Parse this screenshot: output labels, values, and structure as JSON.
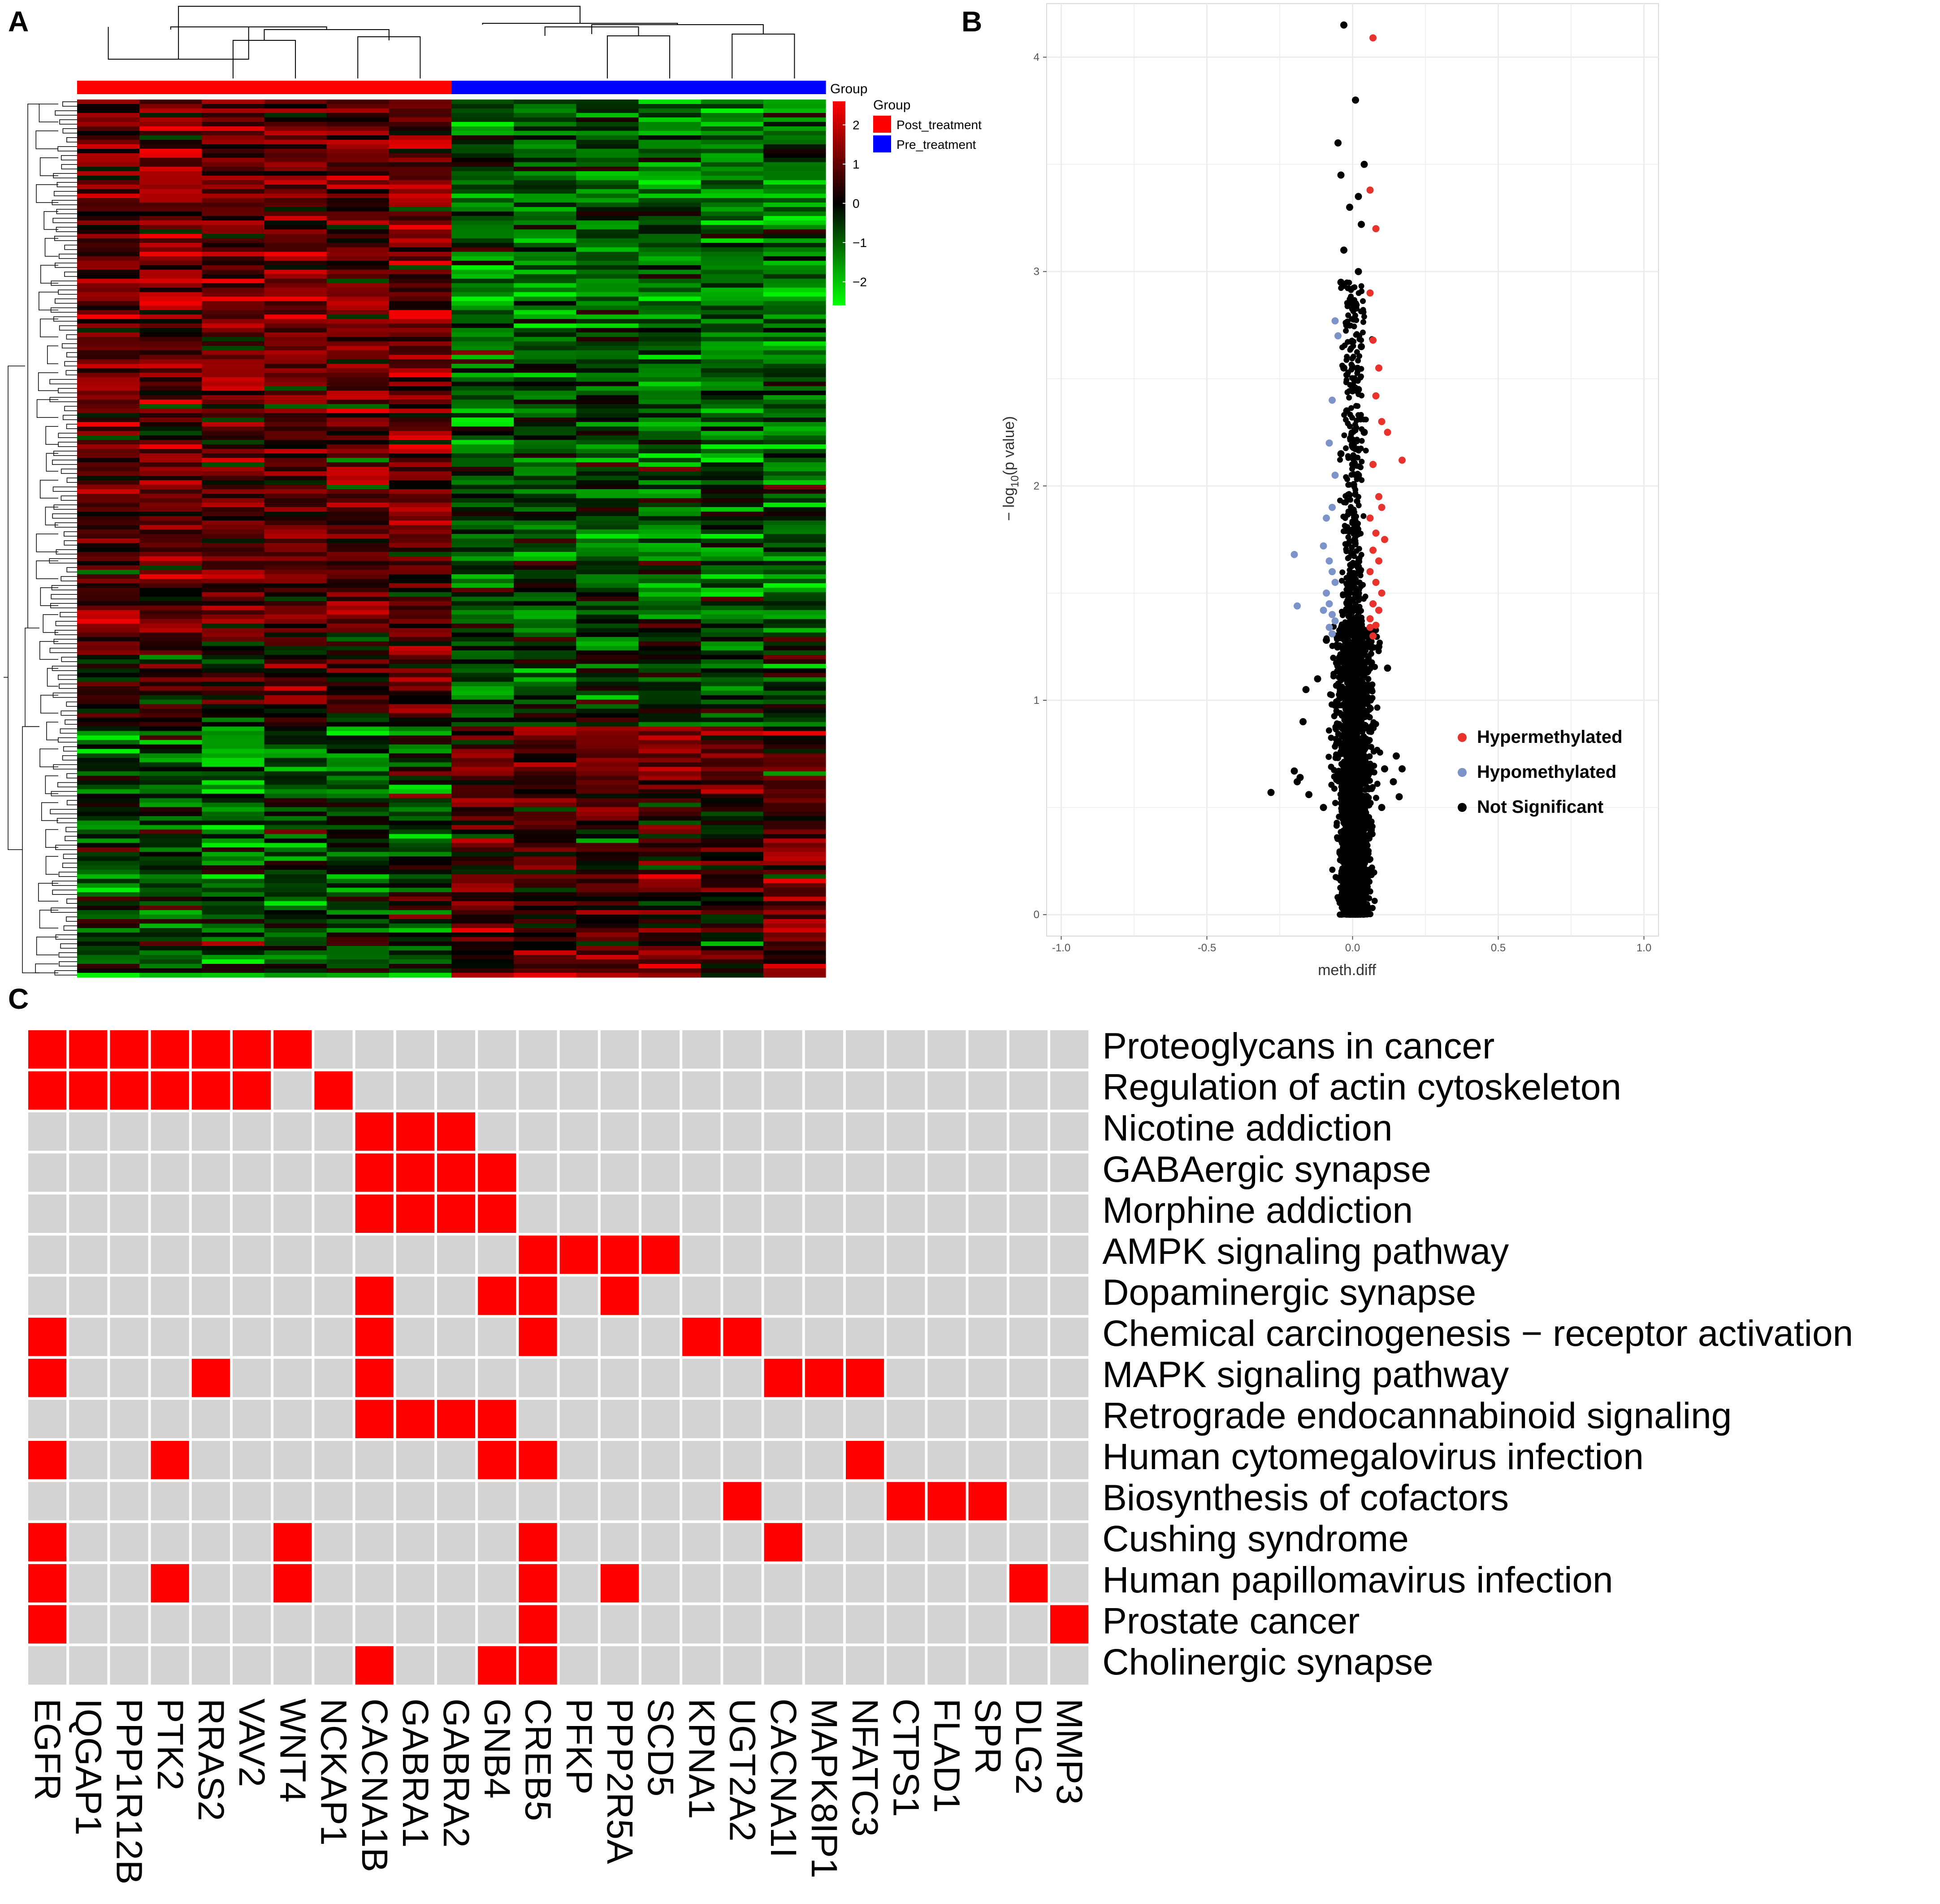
{
  "panels": {
    "a": {
      "letter": "A"
    },
    "b": {
      "letter": "B"
    },
    "c": {
      "letter": "C"
    }
  },
  "chart_data": [
    {
      "id": "heatmap",
      "type": "heatmap",
      "title": "",
      "description_rows": 196,
      "columns": 12,
      "column_groups": [
        "Post_treatment",
        "Post_treatment",
        "Post_treatment",
        "Post_treatment",
        "Post_treatment",
        "Post_treatment",
        "Pre_treatment",
        "Pre_treatment",
        "Pre_treatment",
        "Pre_treatment",
        "Pre_treatment",
        "Pre_treatment"
      ],
      "group_legend": {
        "title": "Group",
        "entries": [
          {
            "label": "Post_treatment",
            "color": "#ff0000"
          },
          {
            "label": "Pre_treatment",
            "color": "#0000ff"
          }
        ]
      },
      "color_scale": {
        "title": "Group",
        "low_color": "#00ff00",
        "mid_color": "#000000",
        "high_color": "#ff0000",
        "ticks": [
          "2",
          "1",
          "0",
          "−1",
          "−2"
        ],
        "tick_values": [
          2,
          1,
          0,
          -1,
          -2
        ],
        "range": [
          -2.6,
          2.6
        ]
      }
    },
    {
      "id": "volcano",
      "type": "scatter",
      "title": "",
      "xlabel": "meth.diff",
      "ylabel": "−log10(p value)",
      "ylabel_main": "− log",
      "ylabel_sub": "10",
      "ylabel_rest": "(p value)",
      "xlim": [
        -1.05,
        1.05
      ],
      "ylim": [
        -0.1,
        4.25
      ],
      "xticks": [
        -1.0,
        -0.5,
        0.0,
        0.5,
        1.0
      ],
      "xtick_labels": [
        "-1.0",
        "-0.5",
        "0.0",
        "0.5",
        "1.0"
      ],
      "yticks": [
        0,
        1,
        2,
        3,
        4
      ],
      "ytick_labels": [
        "0",
        "1",
        "2",
        "3",
        "4"
      ],
      "grid": true,
      "legend_placement": "bottom-right",
      "series": [
        {
          "name": "Hypermethylated",
          "color": "#e8322b",
          "points": [
            [
              0.07,
              4.09
            ],
            [
              0.06,
              3.38
            ],
            [
              0.08,
              3.2
            ],
            [
              0.06,
              2.9
            ],
            [
              0.07,
              2.68
            ],
            [
              0.09,
              2.55
            ],
            [
              0.08,
              2.42
            ],
            [
              0.1,
              2.3
            ],
            [
              0.12,
              2.25
            ],
            [
              0.17,
              2.12
            ],
            [
              0.07,
              2.1
            ],
            [
              0.09,
              1.95
            ],
            [
              0.1,
              1.9
            ],
            [
              0.06,
              1.85
            ],
            [
              0.08,
              1.78
            ],
            [
              0.11,
              1.75
            ],
            [
              0.07,
              1.7
            ],
            [
              0.09,
              1.65
            ],
            [
              0.06,
              1.6
            ],
            [
              0.08,
              1.55
            ],
            [
              0.1,
              1.5
            ],
            [
              0.07,
              1.45
            ],
            [
              0.09,
              1.42
            ],
            [
              0.06,
              1.38
            ],
            [
              0.08,
              1.35
            ],
            [
              0.07,
              1.3
            ],
            [
              0.06,
              1.34
            ]
          ]
        },
        {
          "name": "Hypomethylated",
          "color": "#7b93c8",
          "points": [
            [
              -0.06,
              2.77
            ],
            [
              -0.05,
              2.7
            ],
            [
              -0.07,
              2.4
            ],
            [
              -0.08,
              2.2
            ],
            [
              -0.06,
              2.05
            ],
            [
              -0.07,
              1.9
            ],
            [
              -0.09,
              1.85
            ],
            [
              -0.2,
              1.68
            ],
            [
              -0.1,
              1.72
            ],
            [
              -0.08,
              1.65
            ],
            [
              -0.07,
              1.6
            ],
            [
              -0.06,
              1.55
            ],
            [
              -0.09,
              1.5
            ],
            [
              -0.08,
              1.45
            ],
            [
              -0.19,
              1.44
            ],
            [
              -0.1,
              1.42
            ],
            [
              -0.07,
              1.4
            ],
            [
              -0.06,
              1.37
            ],
            [
              -0.08,
              1.34
            ],
            [
              -0.07,
              1.31
            ]
          ]
        },
        {
          "name": "Not Significant",
          "color": "#000000",
          "points": [
            [
              -0.03,
              4.15
            ],
            [
              0.01,
              3.8
            ],
            [
              -0.05,
              3.6
            ],
            [
              0.04,
              3.5
            ],
            [
              -0.04,
              3.45
            ],
            [
              0.02,
              3.35
            ],
            [
              -0.01,
              3.3
            ],
            [
              0.03,
              3.22
            ],
            [
              -0.03,
              3.1
            ],
            [
              0.02,
              3.0
            ],
            [
              -0.04,
              2.95
            ],
            [
              0.01,
              2.85
            ],
            [
              -0.02,
              2.75
            ],
            [
              0.03,
              2.65
            ],
            [
              -0.03,
              2.55
            ],
            [
              0.02,
              2.45
            ],
            [
              -0.02,
              2.35
            ],
            [
              0.04,
              2.25
            ],
            [
              -0.04,
              2.15
            ],
            [
              0.02,
              2.05
            ],
            [
              -0.28,
              0.57
            ],
            [
              -0.2,
              0.67
            ],
            [
              -0.18,
              0.64
            ],
            [
              -0.15,
              0.56
            ],
            [
              -0.16,
              1.05
            ],
            [
              -0.17,
              0.9
            ],
            [
              -0.19,
              0.62
            ],
            [
              0.17,
              0.68
            ],
            [
              0.14,
              0.62
            ],
            [
              0.16,
              0.55
            ],
            [
              0.15,
              0.74
            ],
            [
              0.11,
              0.68
            ],
            [
              -0.1,
              0.5
            ],
            [
              0.1,
              0.5
            ],
            [
              0.09,
              1.25
            ],
            [
              -0.09,
              1.28
            ],
            [
              0.12,
              1.15
            ],
            [
              -0.12,
              1.1
            ]
          ]
        }
      ]
    },
    {
      "id": "pathway-grid",
      "type": "heatmap",
      "title": "",
      "genes": [
        "EGFR",
        "IQGAP1",
        "PPP1R12B",
        "PTK2",
        "RRAS2",
        "VAV2",
        "WNT4",
        "NCKAP1",
        "CACNA1B",
        "GABRA1",
        "GABRA2",
        "GNB4",
        "CREB5",
        "PFKP",
        "PPP2R5A",
        "SCD5",
        "KPNA1",
        "UGT2A2",
        "CACNA1I",
        "MAPK8IP1",
        "NFATC3",
        "CTPS1",
        "FLAD1",
        "SPR",
        "DLG2",
        "MMP3"
      ],
      "pathways": [
        {
          "name": "Proteoglycans in cancer",
          "genes": [
            "EGFR",
            "IQGAP1",
            "PPP1R12B",
            "PTK2",
            "RRAS2",
            "VAV2",
            "WNT4"
          ]
        },
        {
          "name": "Regulation of actin cytoskeleton",
          "genes": [
            "EGFR",
            "IQGAP1",
            "PPP1R12B",
            "PTK2",
            "RRAS2",
            "VAV2",
            "NCKAP1"
          ]
        },
        {
          "name": "Nicotine addiction",
          "genes": [
            "CACNA1B",
            "GABRA1",
            "GABRA2"
          ]
        },
        {
          "name": "GABAergic synapse",
          "genes": [
            "CACNA1B",
            "GABRA1",
            "GABRA2",
            "GNB4"
          ]
        },
        {
          "name": "Morphine addiction",
          "genes": [
            "CACNA1B",
            "GABRA1",
            "GABRA2",
            "GNB4"
          ]
        },
        {
          "name": "AMPK signaling pathway",
          "genes": [
            "CREB5",
            "PFKP",
            "PPP2R5A",
            "SCD5"
          ]
        },
        {
          "name": "Dopaminergic synapse",
          "genes": [
            "CACNA1B",
            "GNB4",
            "CREB5",
            "PPP2R5A"
          ]
        },
        {
          "name": "Chemical carcinogenesis − receptor activation",
          "genes": [
            "EGFR",
            "CACNA1B",
            "CREB5",
            "KPNA1",
            "UGT2A2"
          ]
        },
        {
          "name": "MAPK signaling pathway",
          "genes": [
            "EGFR",
            "RRAS2",
            "CACNA1B",
            "CACNA1I",
            "MAPK8IP1",
            "NFATC3"
          ]
        },
        {
          "name": "Retrograde endocannabinoid signaling",
          "genes": [
            "CACNA1B",
            "GABRA1",
            "GABRA2",
            "GNB4"
          ]
        },
        {
          "name": "Human cytomegalovirus infection",
          "genes": [
            "EGFR",
            "PTK2",
            "GNB4",
            "CREB5",
            "NFATC3"
          ]
        },
        {
          "name": "Biosynthesis of cofactors",
          "genes": [
            "UGT2A2",
            "CTPS1",
            "FLAD1",
            "SPR"
          ]
        },
        {
          "name": "Cushing syndrome",
          "genes": [
            "EGFR",
            "WNT4",
            "CREB5",
            "CACNA1I"
          ]
        },
        {
          "name": "Human papillomavirus infection",
          "genes": [
            "EGFR",
            "PTK2",
            "WNT4",
            "CREB5",
            "PPP2R5A",
            "DLG2"
          ]
        },
        {
          "name": "Prostate cancer",
          "genes": [
            "EGFR",
            "CREB5",
            "MMP3"
          ]
        },
        {
          "name": "Cholinergic synapse",
          "genes": [
            "CACNA1B",
            "GNB4",
            "CREB5"
          ]
        }
      ],
      "present_color": "#ff0000",
      "absent_color": "#d3d3d3"
    }
  ]
}
